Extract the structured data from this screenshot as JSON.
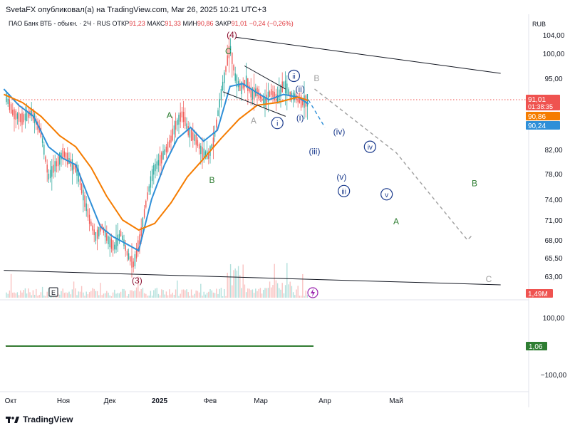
{
  "header": {
    "published": "SvetaFX опубликовал(а) на TradingView.com, Mar 26, 2025 10:21 UTC+3"
  },
  "legend": {
    "symbol": "ПАО Банк ВТБ - обыкн. · 2Ч · RUS",
    "open_label": "ОТКР",
    "open": "91,23",
    "high_label": "МАКС",
    "high": "91,33",
    "low_label": "МИН",
    "low": "90,86",
    "close_label": "ЗАКР",
    "close": "91,01",
    "change": "−0,24 (−0,26%)"
  },
  "currency": "RUB",
  "footer": {
    "brand": "TradingView",
    "logo_icon": "tradingview-logo-icon"
  },
  "colors": {
    "up": "#26a69a",
    "down": "#ef5350",
    "ma_fast": "#2f8fd8",
    "ma_slow": "#f57c00",
    "wave_green": "#2e7d32",
    "wave_red": "#880e2f",
    "wave_blue": "#1a3a8c",
    "label_gray": "#9e9e9e"
  },
  "chart_data": [
    {
      "type": "line",
      "title": "",
      "xlabel": "",
      "ylabel": "",
      "x_ticks": [
        "Окт",
        "Ноя",
        "Дек",
        "2025",
        "Фев",
        "Мар",
        "Апр",
        "Май"
      ],
      "y_ticks": [
        "104,00",
        "100,00",
        "95,00",
        "82,00",
        "78,00",
        "74,00",
        "71,00",
        "68,00",
        "65,50",
        "63,00"
      ],
      "scale": "log",
      "ylim": [
        61.5,
        107
      ],
      "price_tags": [
        {
          "value": "91,01",
          "sub": "01:38:35",
          "color": "#ef5350",
          "text_color": "#ffffff"
        },
        {
          "value": "90,86",
          "color": "#f57c00",
          "text_color": "#ffffff"
        },
        {
          "value": "90,24",
          "color": "#2f8fd8",
          "text_color": "#ffffff"
        }
      ],
      "last_price": 91.01,
      "series": [
        {
          "kind": "price_approx",
          "color": "#ef5350",
          "points": [
            [
              "Sep 30",
              92.5
            ],
            [
              "Oct 5",
              88.5
            ],
            [
              "Oct 10",
              87.5
            ],
            [
              "Oct 15",
              88.8
            ],
            [
              "Oct 20",
              85.0
            ],
            [
              "Oct 24",
              77.5
            ],
            [
              "Oct 28",
              79.5
            ],
            [
              "Nov 1",
              81.5
            ],
            [
              "Nov 5",
              80.0
            ],
            [
              "Nov 10",
              78.5
            ],
            [
              "Nov 14",
              74.5
            ],
            [
              "Nov 18",
              71.0
            ],
            [
              "Nov 22",
              68.5
            ],
            [
              "Nov 26",
              70.0
            ],
            [
              "Nov 30",
              68.0
            ],
            [
              "Dec 4",
              67.0
            ],
            [
              "Dec 8",
              69.0
            ],
            [
              "Dec 12",
              66.0
            ],
            [
              "Dec 16",
              64.5
            ],
            [
              "Dec 20",
              68.5
            ],
            [
              "Dec 24",
              74.0
            ],
            [
              "Dec 28",
              78.5
            ],
            [
              "Jan 2",
              80.5
            ],
            [
              "Jan 7",
              83.0
            ],
            [
              "Jan 11",
              86.5
            ],
            [
              "Jan 15",
              88.5
            ],
            [
              "Jan 19",
              85.0
            ],
            [
              "Jan 23",
              84.0
            ],
            [
              "Jan 27",
              81.5
            ],
            [
              "Jan 31",
              81.0
            ],
            [
              "Feb 3",
              83.5
            ],
            [
              "Feb 6",
              90.0
            ],
            [
              "Feb 9",
              95.5
            ],
            [
              "Feb 12",
              101.5
            ],
            [
              "Feb 15",
              95.0
            ],
            [
              "Feb 18",
              93.0
            ],
            [
              "Feb 21",
              94.5
            ],
            [
              "Feb 24",
              92.0
            ],
            [
              "Feb 27",
              92.5
            ],
            [
              "Mar 3",
              90.5
            ],
            [
              "Mar 6",
              92.5
            ],
            [
              "Mar 9",
              91.0
            ],
            [
              "Mar 12",
              94.0
            ],
            [
              "Mar 15",
              92.0
            ],
            [
              "Mar 18",
              91.5
            ],
            [
              "Mar 21",
              90.5
            ],
            [
              "Mar 24",
              91.0
            ]
          ]
        },
        {
          "kind": "ma_fast",
          "color": "#2f8fd8",
          "points": [
            [
              "Sep 30",
              93.0
            ],
            [
              "Oct 8",
              90.0
            ],
            [
              "Oct 16",
              88.0
            ],
            [
              "Oct 24",
              82.5
            ],
            [
              "Nov 1",
              80.5
            ],
            [
              "Nov 9",
              79.5
            ],
            [
              "Nov 17",
              74.5
            ],
            [
              "Nov 25",
              70.0
            ],
            [
              "Dec 3",
              68.5
            ],
            [
              "Dec 11",
              67.5
            ],
            [
              "Dec 19",
              66.5
            ],
            [
              "Dec 27",
              74.0
            ],
            [
              "Jan 4",
              79.5
            ],
            [
              "Jan 12",
              84.0
            ],
            [
              "Jan 20",
              86.0
            ],
            [
              "Jan 28",
              83.5
            ],
            [
              "Feb 5",
              85.5
            ],
            [
              "Feb 12",
              93.5
            ],
            [
              "Feb 19",
              94.0
            ],
            [
              "Feb 26",
              92.5
            ],
            [
              "Mar 5",
              91.0
            ],
            [
              "Mar 12",
              92.0
            ],
            [
              "Mar 19",
              91.5
            ],
            [
              "Mar 24",
              90.24
            ]
          ]
        },
        {
          "kind": "ma_slow",
          "color": "#f57c00",
          "points": [
            [
              "Sep 30",
              92.0
            ],
            [
              "Oct 10",
              90.5
            ],
            [
              "Oct 20",
              88.0
            ],
            [
              "Oct 30",
              84.5
            ],
            [
              "Nov 9",
              82.5
            ],
            [
              "Nov 19",
              79.0
            ],
            [
              "Nov 29",
              74.5
            ],
            [
              "Dec 9",
              71.0
            ],
            [
              "Dec 19",
              69.5
            ],
            [
              "Dec 29",
              70.5
            ],
            [
              "Jan 8",
              73.5
            ],
            [
              "Jan 18",
              77.5
            ],
            [
              "Jan 28",
              80.5
            ],
            [
              "Feb 7",
              84.0
            ],
            [
              "Feb 17",
              87.5
            ],
            [
              "Feb 27",
              90.0
            ],
            [
              "Mar 9",
              90.5
            ],
            [
              "Mar 19",
              91.5
            ],
            [
              "Mar 24",
              90.86
            ]
          ]
        },
        {
          "kind": "forecast_path",
          "color": "#9e9e9e",
          "points": [
            [
              "Mar 27",
              93.0
            ],
            [
              "May 1",
              81.5
            ],
            [
              "Jun 1",
              68.0
            ],
            [
              "Jun 3",
              68.7
            ]
          ]
        },
        {
          "kind": "forecast_small",
          "color": "#2f8fd8",
          "points": [
            [
              "Mar 24",
              91.0
            ],
            [
              "Mar 28",
              88.5
            ],
            [
              "Apr 1",
              86.0
            ]
          ]
        }
      ],
      "trendlines": [
        {
          "color": "#131722",
          "from": [
            "Sep 30",
            63.8
          ],
          "to": [
            "Jun 15",
            61.8
          ]
        },
        {
          "color": "#131722",
          "from": [
            "Feb 15",
            103.5
          ],
          "to": [
            "Jun 15",
            96.0
          ]
        },
        {
          "color": "#131722",
          "from": [
            "Feb 20",
            97.5
          ],
          "to": [
            "Mar 13",
            93.0
          ]
        },
        {
          "color": "#131722",
          "from": [
            "Feb 8",
            92.5
          ],
          "to": [
            "Mar 13",
            88.0
          ]
        }
      ],
      "wave_labels": [
        {
          "text": "(4)",
          "x": "Feb 13",
          "y": 104.0,
          "color": "#880e2f",
          "style": "plain"
        },
        {
          "text": "C",
          "x": "Feb 11",
          "y": 100.5,
          "color": "#2e7d32",
          "style": "plain"
        },
        {
          "text": "A",
          "x": "Jan 7",
          "y": 88.2,
          "color": "#2e7d32",
          "style": "plain"
        },
        {
          "text": "B",
          "x": "Feb 2",
          "y": 77.0,
          "color": "#2e7d32",
          "style": "plain"
        },
        {
          "text": "(3)",
          "x": "Dec 18",
          "y": 62.4,
          "color": "#880e2f",
          "style": "plain"
        },
        {
          "text": "A",
          "x": "Feb 25",
          "y": 87.2,
          "color": "#9e9e9e",
          "style": "plain"
        },
        {
          "text": "B",
          "x": "Mar 28",
          "y": 95.0,
          "color": "#9e9e9e",
          "style": "plain"
        },
        {
          "text": "C",
          "x": "Jun 10",
          "y": 62.6,
          "color": "#9e9e9e",
          "style": "plain"
        },
        {
          "text": "ii",
          "x": "Mar 17",
          "y": 95.5,
          "color": "#1a3a8c",
          "style": "circle"
        },
        {
          "text": "i",
          "x": "Mar 9",
          "y": 86.8,
          "color": "#1a3a8c",
          "style": "circle"
        },
        {
          "text": "(ii)",
          "x": "Mar 20",
          "y": 93.0,
          "color": "#1a3a8c",
          "style": "plain"
        },
        {
          "text": "(i)",
          "x": "Mar 20",
          "y": 87.7,
          "color": "#1a3a8c",
          "style": "plain"
        },
        {
          "text": "(iv)",
          "x": "Apr 7",
          "y": 85.2,
          "color": "#1a3a8c",
          "style": "plain"
        },
        {
          "text": "(iii)",
          "x": "Mar 27",
          "y": 81.7,
          "color": "#1a3a8c",
          "style": "plain"
        },
        {
          "text": "(v)",
          "x": "Apr 8",
          "y": 77.5,
          "color": "#1a3a8c",
          "style": "plain"
        },
        {
          "text": "iv",
          "x": "Apr 20",
          "y": 82.5,
          "color": "#1a3a8c",
          "style": "circle"
        },
        {
          "text": "iii",
          "x": "Apr 9",
          "y": 75.3,
          "color": "#1a3a8c",
          "style": "circle"
        },
        {
          "text": "v",
          "x": "Apr 27",
          "y": 74.8,
          "color": "#1a3a8c",
          "style": "circle"
        },
        {
          "text": "B",
          "x": "Jun 4",
          "y": 76.5,
          "color": "#2e7d32",
          "style": "plain"
        },
        {
          "text": "A",
          "x": "May 1",
          "y": 70.8,
          "color": "#2e7d32",
          "style": "plain"
        }
      ]
    },
    {
      "type": "bar",
      "title": "volume",
      "current_value": "1,49M"
    },
    {
      "type": "line",
      "title": "oscillator",
      "y_ticks": [
        "100,00",
        "−100,00"
      ],
      "current_value": "1,06",
      "value_color": "#2e7d32"
    }
  ],
  "panel_badge": "E"
}
